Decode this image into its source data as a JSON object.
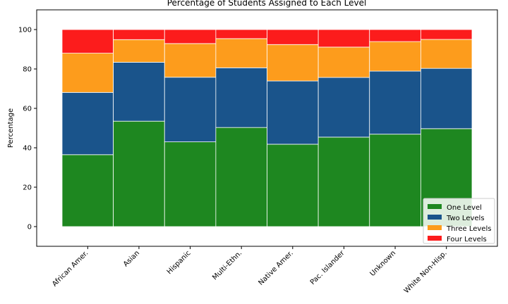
{
  "chart_data": {
    "type": "bar",
    "stacked": true,
    "title": "Percentage of Students Assigned to Each Level",
    "xlabel": "",
    "ylabel": "Percentage",
    "ylim": [
      -10,
      110
    ],
    "yticks": [
      0,
      20,
      40,
      60,
      80,
      100
    ],
    "categories": [
      "African Amer.",
      "Asian",
      "Hispanic",
      "Multi-Ethn.",
      "Native Amer.",
      "Pac. Islander",
      "Unknown",
      "White Non-Hisp."
    ],
    "series": [
      {
        "name": "One Level",
        "color": "#1e8720",
        "values": [
          36.5,
          53.5,
          43.0,
          50.3,
          41.8,
          45.4,
          46.9,
          49.7
        ]
      },
      {
        "name": "Two Levels",
        "color": "#1a548b",
        "values": [
          31.6,
          29.9,
          32.8,
          30.3,
          32.1,
          30.3,
          32.0,
          30.6
        ]
      },
      {
        "name": "Three Levels",
        "color": "#fd9c1c",
        "values": [
          19.9,
          11.5,
          17.1,
          14.8,
          18.5,
          15.4,
          15.0,
          14.7
        ]
      },
      {
        "name": "Four Levels",
        "color": "#fc1c1c",
        "values": [
          12.0,
          5.1,
          7.1,
          4.6,
          7.6,
          8.9,
          6.1,
          5.0
        ]
      }
    ],
    "grid": false,
    "legend_position": "lower-right"
  }
}
